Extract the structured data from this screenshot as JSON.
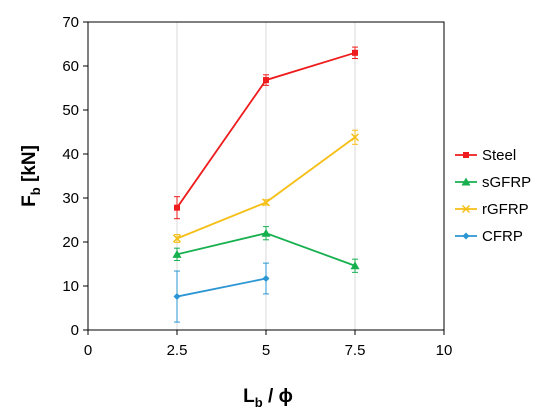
{
  "chart_data": {
    "type": "line",
    "xlabel": {
      "main": "L",
      "sub": "b",
      "rest": " / ϕ"
    },
    "ylabel": {
      "main": "F",
      "sub": "b",
      "rest": " [kN]"
    },
    "xlim": [
      0,
      10
    ],
    "ylim": [
      0,
      70
    ],
    "xticks": [
      0,
      2.5,
      5,
      7.5,
      10
    ],
    "yticks": [
      0,
      10,
      20,
      30,
      40,
      50,
      60,
      70
    ],
    "xtick_labels": [
      "0",
      "2.5",
      "5",
      "7.5",
      "10"
    ],
    "ytick_labels": [
      "0",
      "10",
      "20",
      "30",
      "40",
      "50",
      "60",
      "70"
    ],
    "vertical_gridlines": [
      2.5,
      5,
      7.5
    ],
    "legend_position": "right",
    "series": [
      {
        "name": "Steel",
        "color": "#ee1c1c",
        "marker": "square",
        "x": [
          2.5,
          5,
          7.5
        ],
        "y": [
          27.8,
          56.8,
          63.0
        ],
        "err": [
          2.5,
          1.2,
          1.3
        ]
      },
      {
        "name": "sGFRP",
        "color": "#16b04f",
        "marker": "triangle",
        "x": [
          2.5,
          5,
          7.5
        ],
        "y": [
          17.2,
          22.0,
          14.6
        ],
        "err": [
          1.4,
          1.5,
          1.5
        ]
      },
      {
        "name": "rGFRP",
        "color": "#f5bf16",
        "marker": "x",
        "x": [
          2.5,
          5,
          7.5
        ],
        "y": [
          20.8,
          29.0,
          43.8
        ],
        "err": [
          0.9,
          0.6,
          1.6
        ]
      },
      {
        "name": "CFRP",
        "color": "#2b96d3",
        "marker": "diamond",
        "x": [
          2.5,
          5
        ],
        "y": [
          7.6,
          11.7
        ],
        "err": [
          5.8,
          3.5
        ]
      }
    ]
  }
}
